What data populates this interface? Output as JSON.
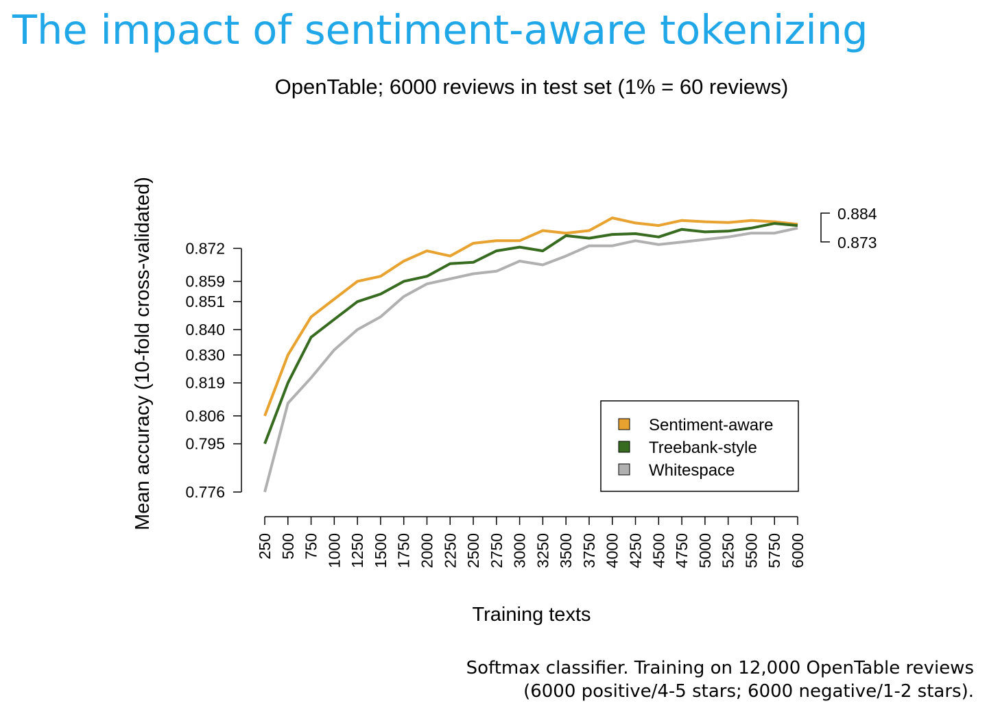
{
  "slide": {
    "title": "The impact of sentiment-aware tokenizing",
    "caption_line1": "Softmax classifier. Training on 12,000 OpenTable reviews",
    "caption_line2": "(6000 positive/4-5 stars; 6000 negative/1-2 stars)."
  },
  "colors": {
    "title": "#1fa7e8",
    "sentiment_aware": "#e8a22f",
    "treebank_style": "#376b1f",
    "whitespace": "#b0b0b0"
  },
  "chart_data": {
    "type": "line",
    "title": "OpenTable; 6000 reviews in test set (1% = 60 reviews)",
    "xlabel": "Training texts",
    "ylabel": "Mean accuracy (10-fold cross-validated)",
    "x": [
      250,
      500,
      750,
      1000,
      1250,
      1500,
      1750,
      2000,
      2250,
      2500,
      2750,
      3000,
      3250,
      3500,
      3750,
      4000,
      4250,
      4500,
      4750,
      5000,
      5250,
      5500,
      5750,
      6000
    ],
    "x_tick_labels": [
      "250",
      "500",
      "750",
      "1000",
      "1250",
      "1500",
      "1750",
      "2000",
      "2250",
      "2500",
      "2750",
      "3000",
      "3250",
      "3500",
      "3750",
      "4000",
      "4250",
      "4500",
      "4750",
      "5000",
      "5250",
      "5500",
      "5750",
      "6000"
    ],
    "y_ticks": [
      0.776,
      0.795,
      0.806,
      0.819,
      0.83,
      0.84,
      0.851,
      0.859,
      0.872
    ],
    "y_tick_labels": [
      "0.776",
      "0.795",
      "0.806",
      "0.819",
      "0.830",
      "0.840",
      "0.851",
      "0.859",
      "0.872"
    ],
    "ylim": [
      0.776,
      0.884
    ],
    "xlim": [
      250,
      6000
    ],
    "grid": false,
    "legend_position": "bottom-right",
    "series": [
      {
        "name": "Sentiment-aware",
        "color": "#e8a22f",
        "values": [
          0.806,
          0.83,
          0.845,
          0.852,
          0.859,
          0.861,
          0.867,
          0.871,
          0.869,
          0.874,
          0.875,
          0.875,
          0.879,
          0.878,
          0.879,
          0.884,
          0.882,
          0.881,
          0.883,
          0.8825,
          0.8822,
          0.883,
          0.8825,
          0.8815
        ]
      },
      {
        "name": "Treebank-style",
        "color": "#376b1f",
        "values": [
          0.795,
          0.819,
          0.837,
          0.844,
          0.851,
          0.854,
          0.859,
          0.861,
          0.866,
          0.8665,
          0.871,
          0.8725,
          0.871,
          0.877,
          0.876,
          0.8775,
          0.8778,
          0.8765,
          0.8795,
          0.8785,
          0.8788,
          0.88,
          0.8818,
          0.881
        ]
      },
      {
        "name": "Whitespace",
        "color": "#b0b0b0",
        "values": [
          0.776,
          0.811,
          0.821,
          0.832,
          0.84,
          0.845,
          0.853,
          0.858,
          0.86,
          0.862,
          0.863,
          0.867,
          0.8655,
          0.869,
          0.873,
          0.873,
          0.875,
          0.8735,
          0.8745,
          0.8755,
          0.8765,
          0.878,
          0.878,
          0.88
        ]
      }
    ],
    "range_annotation": {
      "high_label": "0.884",
      "low_label": "0.873"
    }
  }
}
